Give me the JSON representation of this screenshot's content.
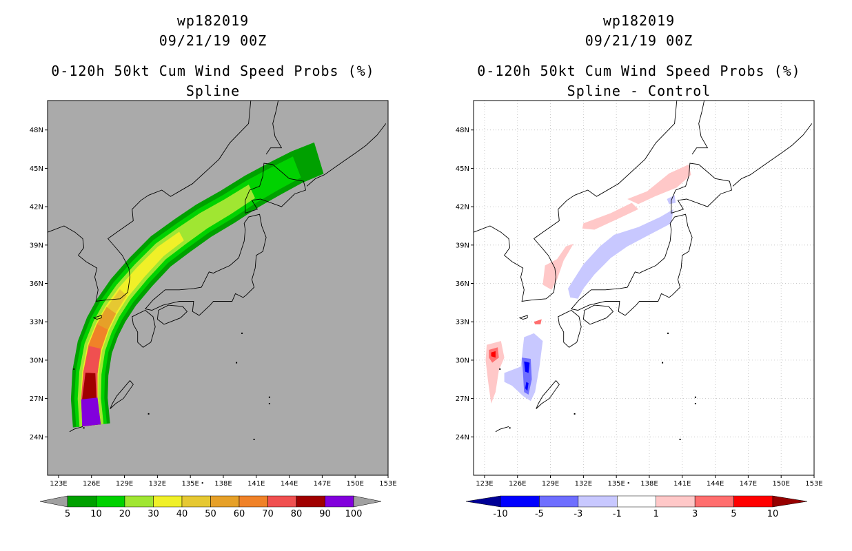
{
  "panels": [
    {
      "id": "left",
      "storm_id": "wp182019",
      "datetime": "09/21/19 00Z",
      "product": "0-120h 50kt Cum Wind Speed Probs (%)",
      "subtitle": "Spline",
      "background": "#aaaaaa",
      "gridlines": false
    },
    {
      "id": "right",
      "storm_id": "wp182019",
      "datetime": "09/21/19 00Z",
      "product": "0-120h 50kt Cum Wind Speed Probs (%)",
      "subtitle": "Spline - Control",
      "background": "#ffffff",
      "gridlines": true
    }
  ],
  "axes": {
    "lat_labels": [
      "48N",
      "45N",
      "42N",
      "39N",
      "36N",
      "33N",
      "30N",
      "27N",
      "24N"
    ],
    "lat_values": [
      48,
      45,
      42,
      39,
      36,
      33,
      30,
      27,
      24
    ],
    "lon_labels": [
      "123E",
      "126E",
      "129E",
      "132E",
      "135E",
      "138E",
      "141E",
      "144E",
      "147E",
      "150E",
      "153E"
    ],
    "lon_values": [
      123,
      126,
      129,
      132,
      135,
      138,
      141,
      144,
      147,
      150,
      153
    ],
    "lat_range": [
      21,
      50.3
    ],
    "lon_range": [
      122,
      153
    ]
  },
  "colorbar_left": {
    "labels": [
      "5",
      "10",
      "20",
      "30",
      "40",
      "50",
      "60",
      "70",
      "80",
      "90",
      "100"
    ],
    "colors": [
      "#00a000",
      "#00d200",
      "#a0e632",
      "#f0f028",
      "#e6c832",
      "#e6a028",
      "#f08228",
      "#f05050",
      "#a00000",
      "#8200dc"
    ],
    "arrow_low": "#a0a0a0",
    "arrow_high": "#a0a0a0"
  },
  "colorbar_right": {
    "labels": [
      "-10",
      "-5",
      "-3",
      "-1",
      "1",
      "3",
      "5",
      "10"
    ],
    "colors": [
      "#0000ff",
      "#6e6eff",
      "#c8c8ff",
      "#ffffff",
      "#ffc8c8",
      "#ff6e6e",
      "#ff0000"
    ],
    "arrow_low": "#000096",
    "arrow_high": "#960000"
  },
  "prob_colors": {
    "p5": "#00a000",
    "p10": "#00d200",
    "p20": "#a0e632",
    "p30": "#f0f028",
    "p40": "#e6c832",
    "p50": "#e6a028",
    "p60": "#f08228",
    "p70": "#f05050",
    "p80": "#a00000",
    "p90": "#8200dc"
  },
  "diff_colors": {
    "pos1": "#ffc8c8",
    "pos3": "#ff6e6e",
    "pos5": "#ff0000",
    "neg1": "#c8c8ff",
    "neg3": "#6e6eff",
    "neg5": "#0000ff"
  }
}
